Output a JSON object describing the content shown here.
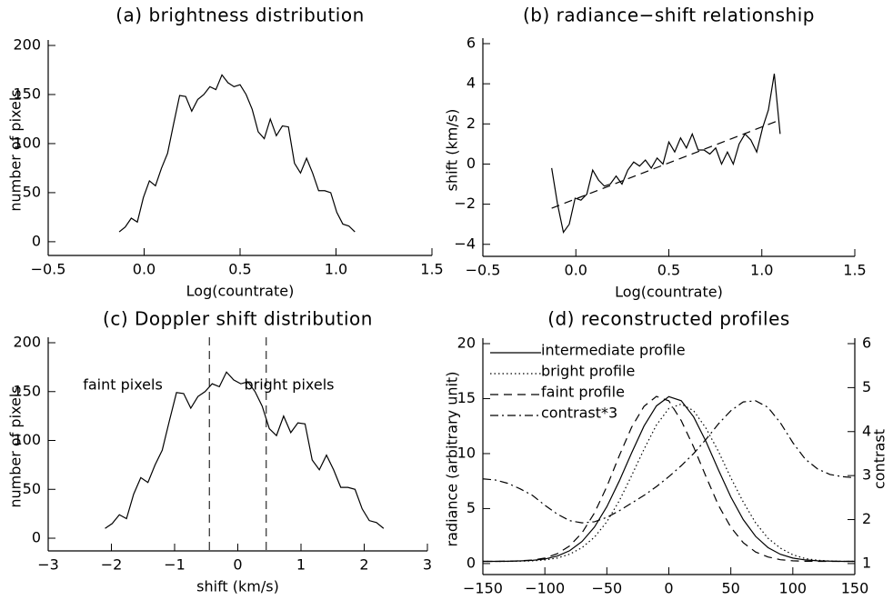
{
  "chart_data": [
    {
      "type": "line",
      "title": "(a) brightness distribution",
      "xlabel": "Log(countrate)",
      "ylabel": "number of pixels",
      "xlim": [
        -0.5,
        1.5
      ],
      "xticks": [
        {
          "value": -0.5,
          "label": "−0.5"
        },
        {
          "value": 0,
          "label": "0.0"
        },
        {
          "value": 0.5,
          "label": "0.5"
        },
        {
          "value": 1,
          "label": "1.0"
        },
        {
          "value": 1.5,
          "label": "1.5"
        }
      ],
      "ylim": [
        -14,
        200
      ],
      "yticks": [
        0,
        50,
        100,
        150,
        200
      ],
      "x": [
        -0.13,
        -0.0985,
        -0.067,
        -0.0355,
        -0.004,
        0.0275,
        0.059,
        0.0905,
        0.122,
        0.1535,
        0.185,
        0.2165,
        0.248,
        0.2795,
        0.311,
        0.3425,
        0.374,
        0.4055,
        0.437,
        0.4685,
        0.5,
        0.5315,
        0.563,
        0.5945,
        0.626,
        0.6575,
        0.689,
        0.7205,
        0.752,
        0.7835,
        0.815,
        0.8465,
        0.878,
        0.9095,
        0.941,
        0.9725,
        1.004,
        1.0355,
        1.067,
        1.0985
      ],
      "series": [
        {
          "color": "#000000",
          "dash": "solid",
          "values": [
            10,
            15,
            24,
            20,
            45,
            62,
            57,
            75,
            90,
            120,
            149,
            148,
            133,
            145,
            150,
            158,
            155,
            170,
            162,
            158,
            160,
            150,
            135,
            112,
            105,
            125,
            108,
            118,
            117,
            80,
            70,
            85,
            70,
            52,
            52,
            50,
            30,
            18,
            16,
            10
          ]
        }
      ]
    },
    {
      "type": "line",
      "title": "(b) radiance−shift relationship",
      "xlabel": "Log(countrate)",
      "ylabel": "shift (km/s)",
      "xlim": [
        -0.5,
        1.5
      ],
      "xticks": [
        {
          "value": -0.5,
          "label": "−0.5"
        },
        {
          "value": 0,
          "label": "0.0"
        },
        {
          "value": 0.5,
          "label": "0.5"
        },
        {
          "value": 1,
          "label": "1.0"
        },
        {
          "value": 1.5,
          "label": "1.5"
        }
      ],
      "ylim": [
        -4.6,
        6
      ],
      "yticks": [
        {
          "value": -4,
          "label": "−4"
        },
        {
          "value": -2,
          "label": "−2"
        },
        0,
        2,
        4,
        6
      ],
      "x": [
        -0.13,
        -0.0985,
        -0.067,
        -0.0355,
        -0.004,
        0.0275,
        0.059,
        0.0905,
        0.122,
        0.1535,
        0.185,
        0.2165,
        0.248,
        0.2795,
        0.311,
        0.3425,
        0.374,
        0.4055,
        0.437,
        0.4685,
        0.5,
        0.5315,
        0.563,
        0.5945,
        0.626,
        0.6575,
        0.689,
        0.7205,
        0.752,
        0.7835,
        0.815,
        0.8465,
        0.878,
        0.9095,
        0.941,
        0.9725,
        1.004,
        1.0355,
        1.067,
        1.0985
      ],
      "series": [
        {
          "color": "#000000",
          "dash": "solid",
          "values": [
            -0.2,
            -2.0,
            -3.4,
            -3.0,
            -1.7,
            -1.8,
            -1.5,
            -0.3,
            -0.8,
            -1.1,
            -1.0,
            -0.6,
            -1.0,
            -0.3,
            0.1,
            -0.1,
            0.2,
            -0.2,
            0.3,
            0.0,
            1.1,
            0.6,
            1.3,
            0.8,
            1.5,
            0.7,
            0.7,
            0.5,
            0.8,
            0.0,
            0.6,
            0.0,
            1.0,
            1.5,
            1.2,
            0.6,
            1.8,
            2.7,
            4.5,
            1.5
          ]
        },
        {
          "color": "#000000",
          "dash": "dashed",
          "x": [
            -0.13,
            1.0985
          ],
          "values": [
            -2.2,
            2.2
          ]
        }
      ]
    },
    {
      "type": "line",
      "title": "(c) Doppler shift distribution",
      "xlabel": "shift (km/s)",
      "ylabel": "number of pixels",
      "xlim": [
        -3,
        3
      ],
      "xticks": [
        {
          "value": -3,
          "label": "−3"
        },
        {
          "value": -2,
          "label": "−2"
        },
        {
          "value": -1,
          "label": "−1"
        },
        0,
        1,
        2,
        3
      ],
      "ylim": [
        -13,
        200
      ],
      "yticks": [
        0,
        50,
        100,
        150,
        200
      ],
      "vlines": [
        -0.45,
        0.45
      ],
      "annotations": [
        "faint pixels",
        "bright pixels"
      ],
      "x": [
        -2.1,
        -1.987,
        -1.874,
        -1.761,
        -1.648,
        -1.535,
        -1.422,
        -1.309,
        -1.196,
        -1.083,
        -0.97,
        -0.857,
        -0.744,
        -0.631,
        -0.518,
        -0.405,
        -0.292,
        -0.179,
        -0.066,
        0.047,
        0.16,
        0.273,
        0.386,
        0.499,
        0.612,
        0.725,
        0.838,
        0.951,
        1.064,
        1.177,
        1.29,
        1.403,
        1.516,
        1.629,
        1.742,
        1.855,
        1.968,
        2.081,
        2.194,
        2.307
      ],
      "series": [
        {
          "color": "#000000",
          "dash": "solid",
          "values": [
            10,
            15,
            24,
            20,
            45,
            62,
            57,
            75,
            90,
            120,
            149,
            148,
            133,
            145,
            150,
            158,
            155,
            170,
            162,
            158,
            160,
            150,
            135,
            112,
            105,
            125,
            108,
            118,
            117,
            80,
            70,
            85,
            70,
            52,
            52,
            50,
            30,
            18,
            16,
            10
          ]
        }
      ]
    },
    {
      "type": "line",
      "title": "(d) reconstructed profiles",
      "xlabel": "shift (km/s)",
      "ylabel": "radiance (arbitrary unit)",
      "y2label": "contrast",
      "xlim": [
        -150,
        150
      ],
      "xticks": [
        {
          "value": -150,
          "label": "−150"
        },
        {
          "value": -100,
          "label": "−100"
        },
        {
          "value": -50,
          "label": "−50"
        },
        0,
        50,
        100,
        150
      ],
      "ylim": [
        -1,
        20
      ],
      "yticks": [
        0,
        5,
        10,
        15,
        20
      ],
      "y2lim": [
        0.75,
        6
      ],
      "y2ticks": [
        1,
        2,
        3,
        4,
        5,
        6
      ],
      "x": [
        -150,
        -140,
        -130,
        -120,
        -110,
        -100,
        -90,
        -80,
        -70,
        -60,
        -50,
        -40,
        -30,
        -20,
        -10,
        0,
        10,
        20,
        30,
        40,
        50,
        60,
        70,
        80,
        90,
        100,
        110,
        120,
        130,
        140,
        150
      ],
      "series": [
        {
          "name": "intermediate profile",
          "color": "#000000",
          "dash": "solid",
          "values": [
            0.2,
            0.2,
            0.21,
            0.24,
            0.29,
            0.41,
            0.68,
            1.17,
            2.01,
            3.32,
            5.17,
            7.5,
            10.07,
            12.51,
            14.34,
            15.18,
            14.81,
            13.34,
            11.09,
            8.52,
            6.06,
            4.0,
            2.47,
            1.45,
            0.84,
            0.5,
            0.33,
            0.25,
            0.22,
            0.2,
            0.2
          ]
        },
        {
          "name": "bright profile",
          "color": "#000000",
          "dash": "dotted",
          "values": [
            0.2,
            0.2,
            0.2,
            0.22,
            0.25,
            0.33,
            0.5,
            0.85,
            1.45,
            2.4,
            3.8,
            5.7,
            8.0,
            10.4,
            12.6,
            14.1,
            14.5,
            13.9,
            12.3,
            10.2,
            7.8,
            5.6,
            3.7,
            2.3,
            1.4,
            0.8,
            0.45,
            0.3,
            0.23,
            0.2,
            0.2
          ]
        },
        {
          "name": "faint profile",
          "color": "#000000",
          "dash": "dashed",
          "values": [
            0.2,
            0.2,
            0.21,
            0.25,
            0.32,
            0.5,
            0.9,
            1.6,
            2.8,
            4.6,
            7.0,
            9.8,
            12.4,
            14.3,
            15.2,
            14.8,
            13.0,
            10.6,
            7.9,
            5.3,
            3.3,
            1.9,
            1.05,
            0.6,
            0.35,
            0.25,
            0.21,
            0.2,
            0.2,
            0.2,
            0.2
          ]
        },
        {
          "name": "contrast*3",
          "color": "#000000",
          "dash": "dashdot",
          "values": [
            7.7,
            7.6,
            7.3,
            6.8,
            6.2,
            5.3,
            4.5,
            3.9,
            3.7,
            3.8,
            4.2,
            4.8,
            5.5,
            6.2,
            7.0,
            7.9,
            8.9,
            10.0,
            11.3,
            12.7,
            13.9,
            14.7,
            14.8,
            14.2,
            12.8,
            11.0,
            9.5,
            8.6,
            8.1,
            7.9,
            7.8
          ]
        }
      ]
    }
  ]
}
